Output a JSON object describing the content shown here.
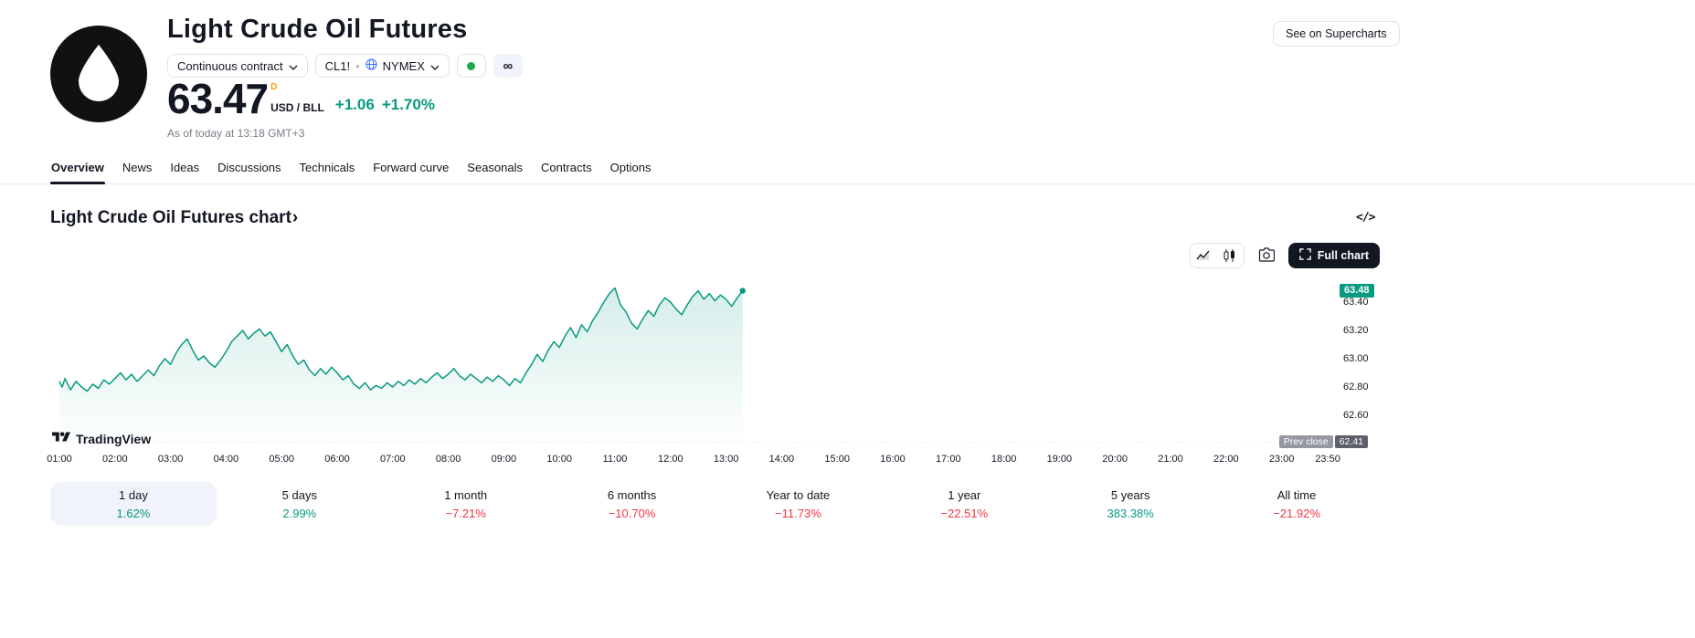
{
  "colors": {
    "green": "#089981",
    "red": "#f23645",
    "orange": "#f0a000",
    "status_green": "#1ba94c",
    "axis_text": "#131722",
    "border": "#e0e3eb",
    "selected_bg": "#f0f3fa",
    "badge_gray": "#9598a1",
    "badge_dark": "#5d606b"
  },
  "header": {
    "title": "Light Crude Oil Futures",
    "buttons": {
      "see_on_supercharts": "See on Supercharts"
    },
    "selectors": {
      "contract": "Continuous contract",
      "symbol": "CL1!",
      "separator": "•",
      "exchange": "NYMEX",
      "infinity": "∞"
    },
    "price": {
      "value": "63.47",
      "marker": "D",
      "unit": "USD / BLL",
      "change_abs": "+1.06",
      "change_pct": "+1.70%"
    },
    "as_of": "As of today at 13:18 GMT+3"
  },
  "tabs": [
    {
      "label": "Overview",
      "active": true
    },
    {
      "label": "News",
      "active": false
    },
    {
      "label": "Ideas",
      "active": false
    },
    {
      "label": "Discussions",
      "active": false
    },
    {
      "label": "Technicals",
      "active": false
    },
    {
      "label": "Forward curve",
      "active": false
    },
    {
      "label": "Seasonals",
      "active": false
    },
    {
      "label": "Contracts",
      "active": false
    },
    {
      "label": "Options",
      "active": false
    }
  ],
  "chart_section": {
    "heading": "Light Crude Oil Futures chart",
    "heading_chevron": "›",
    "code_icon": "</>"
  },
  "toolbar": {
    "full_chart_label": "Full chart"
  },
  "watermark": {
    "text": "TradingView"
  },
  "icons": [
    "oil-drop-icon",
    "chevron-down-icon",
    "globe-icon",
    "market-open-dot-icon",
    "infinity-icon",
    "code-icon",
    "area-chart-icon",
    "candles-chart-icon",
    "camera-icon",
    "expand-icon",
    "tradingview-logo-icon"
  ],
  "chart_data": {
    "type": "area",
    "title": "Light Crude Oil Futures chart",
    "line_color": "#089981",
    "x_axis": {
      "ticks": [
        [
          1,
          "01:00"
        ],
        [
          2,
          "02:00"
        ],
        [
          3,
          "03:00"
        ],
        [
          4,
          "04:00"
        ],
        [
          5,
          "05:00"
        ],
        [
          6,
          "06:00"
        ],
        [
          7,
          "07:00"
        ],
        [
          8,
          "08:00"
        ],
        [
          9,
          "09:00"
        ],
        [
          10,
          "10:00"
        ],
        [
          11,
          "11:00"
        ],
        [
          12,
          "12:00"
        ],
        [
          13,
          "13:00"
        ],
        [
          14,
          "14:00"
        ],
        [
          15,
          "15:00"
        ],
        [
          16,
          "16:00"
        ],
        [
          17,
          "17:00"
        ],
        [
          18,
          "18:00"
        ],
        [
          19,
          "19:00"
        ],
        [
          20,
          "20:00"
        ],
        [
          21,
          "21:00"
        ],
        [
          22,
          "22:00"
        ],
        [
          23,
          "23:00"
        ],
        [
          23.83,
          "23:50"
        ]
      ]
    },
    "y_axis": {
      "ticks": [
        63.4,
        63.2,
        63.0,
        62.8,
        62.6
      ],
      "last_price": 63.48,
      "last_price_label": "63.48",
      "prev_close": 62.41,
      "prev_close_label": "Prev close",
      "prev_close_value_label": "62.41"
    },
    "series": [
      {
        "name": "CL1!",
        "points": [
          [
            1.0,
            62.84
          ],
          [
            1.05,
            62.8
          ],
          [
            1.1,
            62.86
          ],
          [
            1.15,
            62.82
          ],
          [
            1.2,
            62.78
          ],
          [
            1.3,
            62.84
          ],
          [
            1.4,
            62.8
          ],
          [
            1.5,
            62.77
          ],
          [
            1.6,
            62.82
          ],
          [
            1.7,
            62.79
          ],
          [
            1.8,
            62.85
          ],
          [
            1.9,
            62.82
          ],
          [
            2.0,
            62.86
          ],
          [
            2.1,
            62.9
          ],
          [
            2.2,
            62.85
          ],
          [
            2.3,
            62.89
          ],
          [
            2.4,
            62.84
          ],
          [
            2.5,
            62.88
          ],
          [
            2.6,
            62.92
          ],
          [
            2.7,
            62.88
          ],
          [
            2.8,
            62.95
          ],
          [
            2.9,
            63.0
          ],
          [
            3.0,
            62.96
          ],
          [
            3.1,
            63.04
          ],
          [
            3.2,
            63.1
          ],
          [
            3.3,
            63.14
          ],
          [
            3.4,
            63.06
          ],
          [
            3.5,
            62.99
          ],
          [
            3.6,
            63.02
          ],
          [
            3.7,
            62.97
          ],
          [
            3.8,
            62.94
          ],
          [
            3.9,
            62.99
          ],
          [
            4.0,
            63.05
          ],
          [
            4.1,
            63.12
          ],
          [
            4.2,
            63.16
          ],
          [
            4.3,
            63.2
          ],
          [
            4.4,
            63.14
          ],
          [
            4.5,
            63.18
          ],
          [
            4.6,
            63.21
          ],
          [
            4.7,
            63.16
          ],
          [
            4.8,
            63.19
          ],
          [
            4.9,
            63.12
          ],
          [
            5.0,
            63.05
          ],
          [
            5.1,
            63.1
          ],
          [
            5.2,
            63.02
          ],
          [
            5.3,
            62.96
          ],
          [
            5.4,
            62.99
          ],
          [
            5.5,
            62.92
          ],
          [
            5.6,
            62.88
          ],
          [
            5.7,
            62.93
          ],
          [
            5.8,
            62.89
          ],
          [
            5.9,
            62.94
          ],
          [
            6.0,
            62.9
          ],
          [
            6.1,
            62.85
          ],
          [
            6.2,
            62.88
          ],
          [
            6.3,
            62.82
          ],
          [
            6.4,
            62.79
          ],
          [
            6.5,
            62.83
          ],
          [
            6.6,
            62.78
          ],
          [
            6.7,
            62.81
          ],
          [
            6.8,
            62.79
          ],
          [
            6.9,
            62.83
          ],
          [
            7.0,
            62.8
          ],
          [
            7.1,
            62.84
          ],
          [
            7.2,
            62.81
          ],
          [
            7.3,
            62.85
          ],
          [
            7.4,
            62.82
          ],
          [
            7.5,
            62.86
          ],
          [
            7.6,
            62.83
          ],
          [
            7.7,
            62.87
          ],
          [
            7.8,
            62.9
          ],
          [
            7.9,
            62.86
          ],
          [
            8.0,
            62.89
          ],
          [
            8.1,
            62.93
          ],
          [
            8.2,
            62.88
          ],
          [
            8.3,
            62.85
          ],
          [
            8.4,
            62.89
          ],
          [
            8.5,
            62.86
          ],
          [
            8.6,
            62.83
          ],
          [
            8.7,
            62.87
          ],
          [
            8.8,
            62.84
          ],
          [
            8.9,
            62.88
          ],
          [
            9.0,
            62.85
          ],
          [
            9.1,
            62.81
          ],
          [
            9.2,
            62.86
          ],
          [
            9.3,
            62.83
          ],
          [
            9.4,
            62.9
          ],
          [
            9.5,
            62.96
          ],
          [
            9.6,
            63.03
          ],
          [
            9.7,
            62.98
          ],
          [
            9.8,
            63.06
          ],
          [
            9.9,
            63.12
          ],
          [
            10.0,
            63.08
          ],
          [
            10.1,
            63.16
          ],
          [
            10.2,
            63.22
          ],
          [
            10.3,
            63.15
          ],
          [
            10.4,
            63.24
          ],
          [
            10.5,
            63.19
          ],
          [
            10.6,
            63.27
          ],
          [
            10.7,
            63.33
          ],
          [
            10.8,
            63.4
          ],
          [
            10.9,
            63.46
          ],
          [
            11.0,
            63.5
          ],
          [
            11.1,
            63.38
          ],
          [
            11.2,
            63.33
          ],
          [
            11.3,
            63.25
          ],
          [
            11.4,
            63.21
          ],
          [
            11.5,
            63.28
          ],
          [
            11.6,
            63.34
          ],
          [
            11.7,
            63.3
          ],
          [
            11.8,
            63.38
          ],
          [
            11.9,
            63.43
          ],
          [
            12.0,
            63.4
          ],
          [
            12.1,
            63.35
          ],
          [
            12.2,
            63.31
          ],
          [
            12.3,
            63.38
          ],
          [
            12.4,
            63.44
          ],
          [
            12.5,
            63.48
          ],
          [
            12.6,
            63.42
          ],
          [
            12.7,
            63.46
          ],
          [
            12.8,
            63.41
          ],
          [
            12.9,
            63.45
          ],
          [
            13.0,
            63.42
          ],
          [
            13.1,
            63.37
          ],
          [
            13.2,
            63.43
          ],
          [
            13.3,
            63.48
          ]
        ]
      }
    ]
  },
  "performance": [
    {
      "label": "1 day",
      "value": "1.62%",
      "dir": "up",
      "selected": true
    },
    {
      "label": "5 days",
      "value": "2.99%",
      "dir": "up",
      "selected": false
    },
    {
      "label": "1 month",
      "value": "−7.21%",
      "dir": "down",
      "selected": false
    },
    {
      "label": "6 months",
      "value": "−10.70%",
      "dir": "down",
      "selected": false
    },
    {
      "label": "Year to date",
      "value": "−11.73%",
      "dir": "down",
      "selected": false
    },
    {
      "label": "1 year",
      "value": "−22.51%",
      "dir": "down",
      "selected": false
    },
    {
      "label": "5 years",
      "value": "383.38%",
      "dir": "up",
      "selected": false
    },
    {
      "label": "All time",
      "value": "−21.92%",
      "dir": "down",
      "selected": false
    }
  ]
}
